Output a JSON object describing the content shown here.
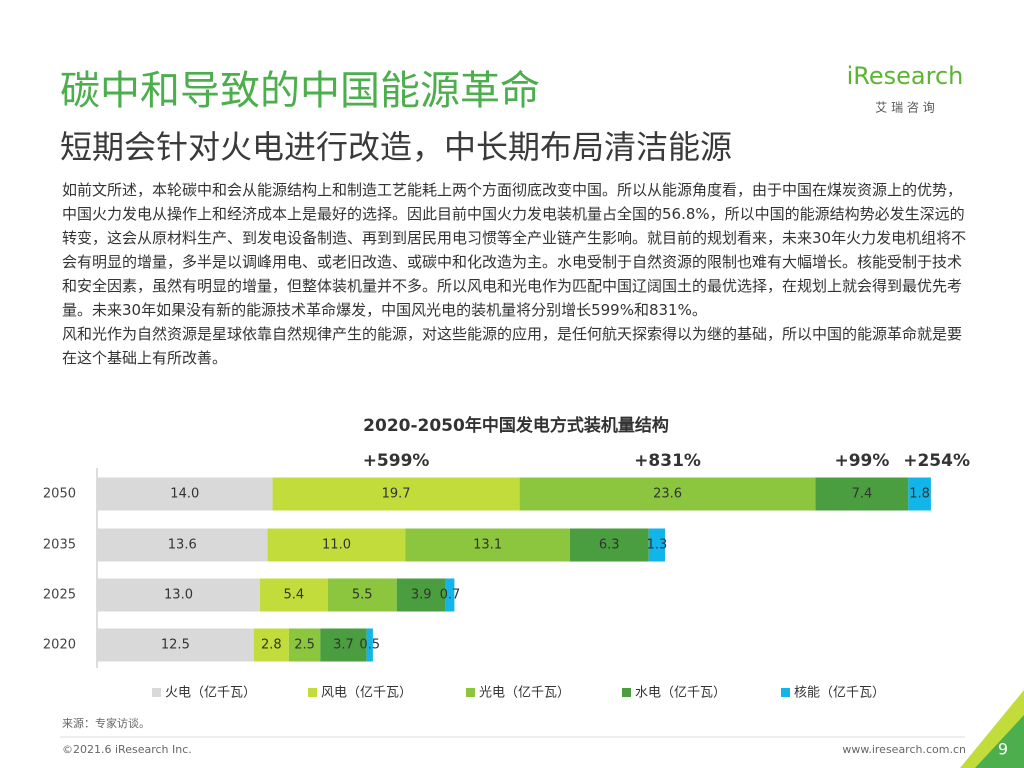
{
  "header": {
    "title": "碳中和导致的中国能源革命",
    "subtitle": "短期会针对火电进行改造，中长期布局清洁能源",
    "logo": "iResearch",
    "logo_sub": "艾 瑞 咨 询"
  },
  "body": [
    "如前文所述，本轮碳中和会从能源结构上和制造工艺能耗上两个方面彻底改变中国。所以从能源角度看，由于中国在煤炭资源上的优势，中国火力发电从操作上和经济成本上是最好的选择。因此目前中国火力发电装机量占全国的56.8%，所以中国的能源结构势必发生深远的转变，这会从原材料生产、到发电设备制造、再到到居民用电习惯等全产业链产生影响。就目前的规划看来，未来30年火力发电机组将不会有明显的增量，多半是以调峰用电、或老旧改造、或碳中和化改造为主。水电受制于自然资源的限制也难有大幅增长。核能受制于技术和安全因素，虽然有明显的增量，但整体装机量并不多。所以风电和光电作为匹配中国辽阔国土的最优选择，在规划上就会得到最优先考量。未来30年如果没有新的能源技术革命爆发，中国风光电的装机量将分别增长599%和831%。",
    "风和光作为自然资源是星球依靠自然规律产生的能源，对这些能源的应用，是任何航天探索得以为继的基础，所以中国的能源革命就是要在这个基础上有所改善。"
  ],
  "chart_data": {
    "type": "stacked-bar-horizontal",
    "title": "2020-2050年中国发电方式装机量结构",
    "categories": [
      "2050",
      "2035",
      "2025",
      "2020"
    ],
    "series": [
      {
        "name": "火电（亿千瓦）",
        "color": "#d9d9d9",
        "values": [
          14.0,
          13.6,
          13.0,
          12.5
        ],
        "value_labels": [
          "14.0",
          "13.6",
          "13.0",
          "12.5"
        ]
      },
      {
        "name": "风电（亿千瓦）",
        "color": "#c2dc3c",
        "values": [
          19.7,
          11.0,
          5.4,
          2.8
        ],
        "value_labels": [
          "19.7",
          "11.0",
          "5.4",
          "2.8"
        ]
      },
      {
        "name": "光电（亿千瓦）",
        "color": "#8cc63f",
        "values": [
          23.6,
          13.1,
          5.5,
          2.5
        ],
        "value_labels": [
          "23.6",
          "13.1",
          "5.5",
          "2.5"
        ]
      },
      {
        "name": "水电（亿千瓦）",
        "color": "#4a9e3f",
        "values": [
          7.4,
          6.3,
          3.9,
          3.7
        ],
        "value_labels": [
          "7.4",
          "6.3",
          "3.9",
          "3.7"
        ]
      },
      {
        "name": "核能（亿千瓦）",
        "color": "#12b5ea",
        "values": [
          1.8,
          1.3,
          0.7,
          0.5
        ],
        "value_labels": [
          "1.8",
          "1.3",
          "0.7",
          "0.5"
        ]
      }
    ],
    "annotations": [
      "+599%",
      "+831%",
      "+99%",
      "+254%"
    ],
    "legend": "bottom"
  },
  "footer": {
    "source": "来源：专家访谈。",
    "copyright": "©2021.6 iResearch Inc.",
    "url": "www.iresearch.com.cn",
    "page": 9
  }
}
